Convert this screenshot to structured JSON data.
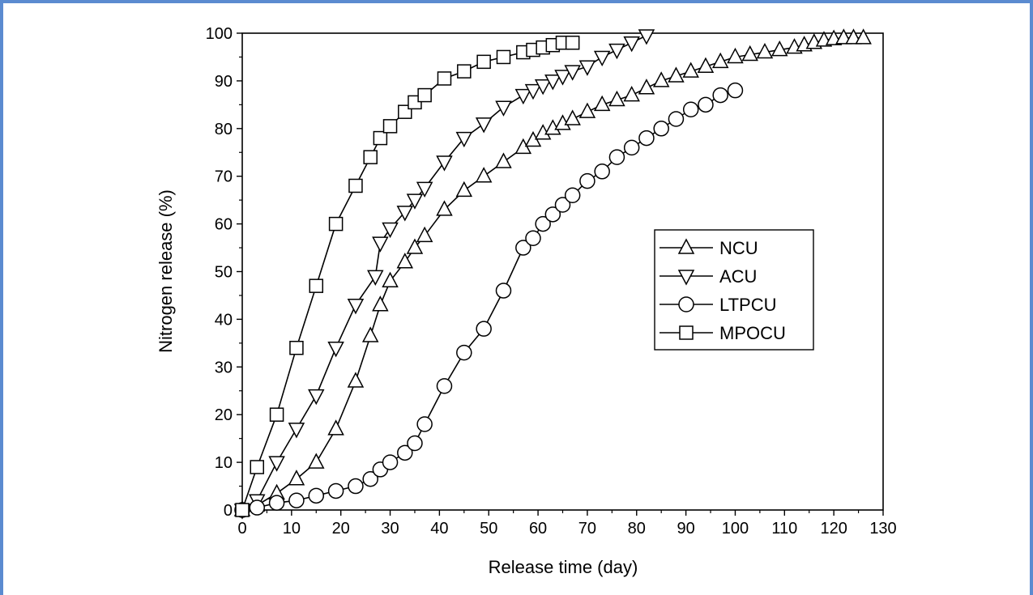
{
  "page": {
    "frame_color": "#5b8bd0"
  },
  "chart_data": {
    "type": "line",
    "title": "",
    "xlabel": "Release time (day)",
    "ylabel": "Nitrogen release (%)",
    "xlim": [
      0,
      130
    ],
    "ylim": [
      0,
      100
    ],
    "xticks": [
      "0",
      "10",
      "20",
      "30",
      "40",
      "50",
      "60",
      "70",
      "80",
      "90",
      "100",
      "110",
      "120",
      "130"
    ],
    "yticks": [
      "0",
      "10",
      "20",
      "30",
      "40",
      "50",
      "60",
      "70",
      "80",
      "90",
      "100"
    ],
    "grid": false,
    "legend": "center-right",
    "series": [
      {
        "name": "NCU",
        "marker": "triangle-up",
        "x": [
          0,
          3,
          7,
          11,
          15,
          19,
          23,
          26,
          28,
          30,
          33,
          35,
          37,
          41,
          45,
          49,
          53,
          57,
          59,
          61,
          63,
          65,
          67,
          70,
          73,
          76,
          79,
          82,
          85,
          88,
          91,
          94,
          97,
          100,
          103,
          106,
          109,
          112,
          114,
          116,
          118,
          120,
          122,
          124,
          126
        ],
        "y": [
          0,
          1,
          3.5,
          6.5,
          10,
          17,
          27,
          36.5,
          43,
          48,
          52,
          55,
          57.5,
          63,
          67,
          70,
          73,
          76,
          77.5,
          79,
          80,
          81,
          82,
          83.5,
          85,
          86,
          87,
          88.5,
          90,
          91,
          92,
          93,
          94,
          95,
          95.5,
          96,
          96.5,
          97,
          97.5,
          98,
          98.5,
          98.8,
          99,
          99,
          99
        ]
      },
      {
        "name": "ACU",
        "marker": "triangle-down",
        "x": [
          0,
          3,
          7,
          11,
          15,
          19,
          23,
          27,
          28,
          30,
          33,
          35,
          37,
          41,
          45,
          49,
          53,
          57,
          59,
          61,
          63,
          65,
          67,
          70,
          73,
          76,
          79,
          82
        ],
        "y": [
          0,
          2,
          10,
          17,
          24,
          34,
          43,
          49,
          56,
          59,
          62.5,
          65,
          67.5,
          73,
          78,
          81,
          84.5,
          87,
          88,
          89,
          90,
          91,
          92,
          93,
          95,
          96.5,
          98,
          99.5
        ]
      },
      {
        "name": "LTPCU",
        "marker": "circle",
        "x": [
          0,
          3,
          7,
          11,
          15,
          19,
          23,
          26,
          28,
          30,
          33,
          35,
          37,
          41,
          45,
          49,
          53,
          57,
          59,
          61,
          63,
          65,
          67,
          70,
          73,
          76,
          79,
          82,
          85,
          88,
          91,
          94,
          97,
          100
        ],
        "y": [
          0,
          0.5,
          1.5,
          2,
          3,
          4,
          5,
          6.5,
          8.5,
          10,
          12,
          14,
          18,
          26,
          33,
          38,
          46,
          55,
          57,
          60,
          62,
          64,
          66,
          69,
          71,
          74,
          76,
          78,
          80,
          82,
          84,
          85,
          87,
          88
        ]
      },
      {
        "name": "MPOCU",
        "marker": "square",
        "x": [
          0,
          3,
          7,
          11,
          15,
          19,
          23,
          26,
          28,
          30,
          33,
          35,
          37,
          41,
          45,
          49,
          53,
          57,
          59,
          61,
          63,
          65,
          67
        ],
        "y": [
          0,
          9,
          20,
          34,
          47,
          60,
          68,
          74,
          78,
          80.5,
          83.5,
          85.5,
          87,
          90.5,
          92,
          94,
          95,
          96,
          96.5,
          97,
          97.5,
          98,
          98
        ]
      }
    ]
  }
}
